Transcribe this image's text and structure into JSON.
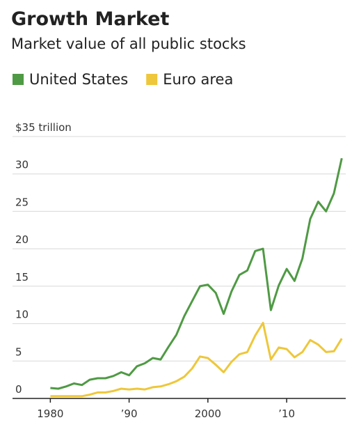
{
  "chart_data": {
    "type": "line",
    "title": "Growth Market",
    "subtitle": "Market value of all public stocks",
    "x": [
      1980,
      1981,
      1982,
      1983,
      1984,
      1985,
      1986,
      1987,
      1988,
      1989,
      1990,
      1991,
      1992,
      1993,
      1994,
      1995,
      1996,
      1997,
      1998,
      1999,
      2000,
      2001,
      2002,
      2003,
      2004,
      2005,
      2006,
      2007,
      2008,
      2009,
      2010,
      2011,
      2012,
      2013,
      2014,
      2015,
      2016,
      2017
    ],
    "series": [
      {
        "name": "United States",
        "color": "#4f9a44",
        "values": [
          1.4,
          1.3,
          1.6,
          2.0,
          1.8,
          2.5,
          2.7,
          2.7,
          3.0,
          3.5,
          3.1,
          4.3,
          4.7,
          5.4,
          5.2,
          6.9,
          8.5,
          11.0,
          13.0,
          15.0,
          15.2,
          14.1,
          11.3,
          14.3,
          16.5,
          17.1,
          19.7,
          20.0,
          11.8,
          15.1,
          17.3,
          15.7,
          18.7,
          24.0,
          26.3,
          25.0,
          27.4,
          32.1
        ]
      },
      {
        "name": "Euro area",
        "color": "#eec73a",
        "values": [
          0.3,
          0.3,
          0.3,
          0.3,
          0.3,
          0.5,
          0.8,
          0.8,
          1.0,
          1.3,
          1.2,
          1.3,
          1.2,
          1.5,
          1.6,
          1.9,
          2.3,
          2.9,
          4.0,
          5.6,
          5.4,
          4.5,
          3.5,
          4.9,
          5.9,
          6.2,
          8.4,
          10.1,
          5.2,
          6.8,
          6.6,
          5.5,
          6.2,
          7.8,
          7.2,
          6.2,
          6.3,
          8.0
        ]
      }
    ],
    "xlim": [
      1975.2,
      2017.5
    ],
    "xticks": [
      1980,
      {
        "value": 1990,
        "label": "’90"
      },
      2000,
      {
        "value": 2010,
        "label": "’10"
      }
    ],
    "ylim": [
      0,
      35
    ],
    "yticks": [
      0,
      5,
      10,
      15,
      20,
      25,
      30,
      {
        "value": 35,
        "label": "$35 trillion"
      }
    ],
    "grid": true
  }
}
